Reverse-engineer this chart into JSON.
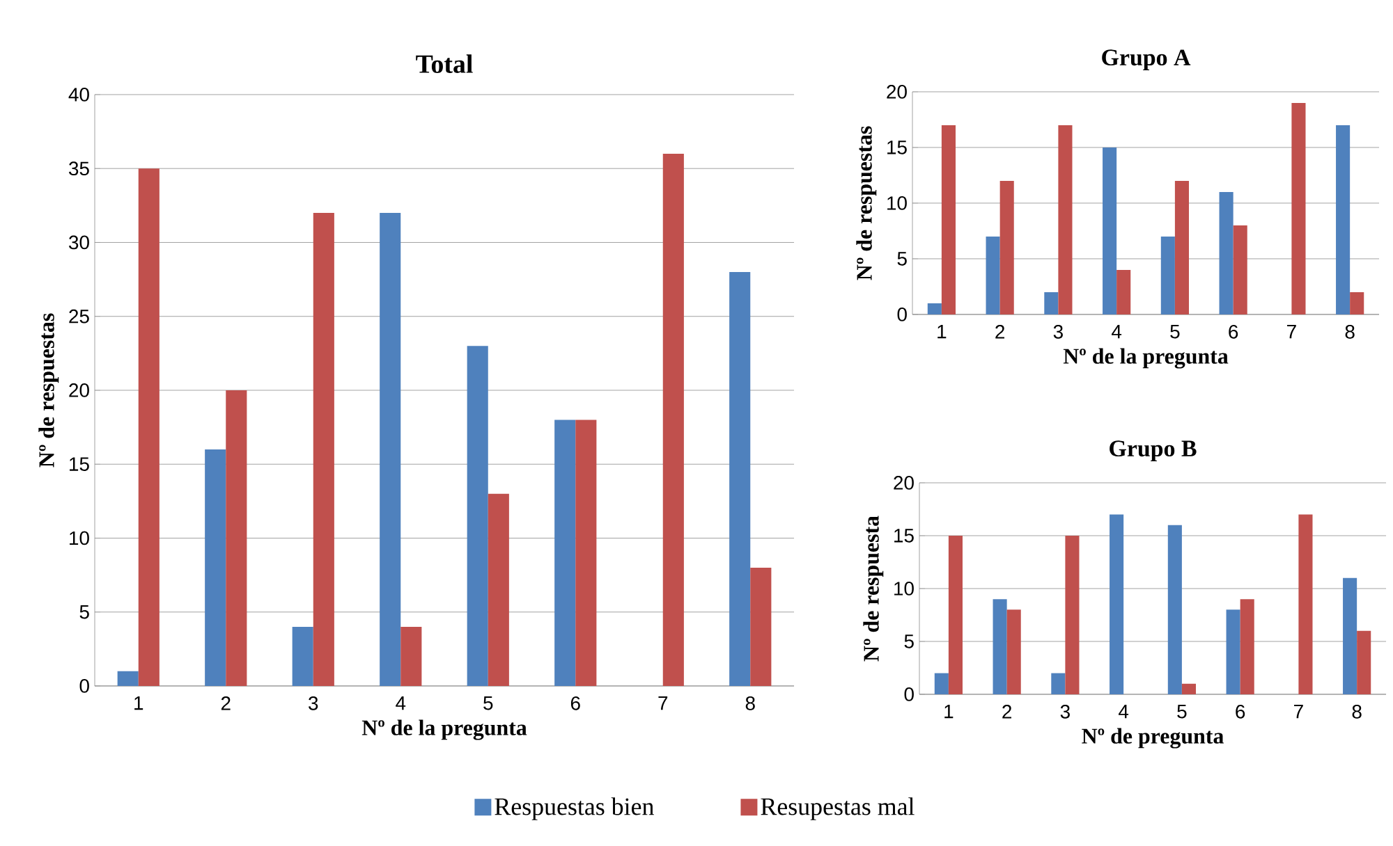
{
  "chart_data": [
    {
      "type": "bar",
      "title": "Total",
      "xlabel": "Nº de la pregunta",
      "ylabel": "Nº de respuestas",
      "categories": [
        "1",
        "2",
        "3",
        "4",
        "5",
        "6",
        "7",
        "8"
      ],
      "series": [
        {
          "name": "Respuestas bien",
          "color": "#4f81bd",
          "values": [
            1,
            16,
            4,
            32,
            23,
            18,
            0,
            28
          ]
        },
        {
          "name": "Resupestas mal",
          "color": "#c0504d",
          "values": [
            35,
            20,
            32,
            4,
            13,
            18,
            36,
            8
          ]
        }
      ],
      "ylim": [
        0,
        40
      ],
      "yticks": [
        0,
        5,
        10,
        15,
        20,
        25,
        30,
        35,
        40
      ],
      "grid": "y",
      "legend": "bottom"
    },
    {
      "type": "bar",
      "title": "Grupo A",
      "xlabel": "Nº de la pregunta",
      "ylabel": "Nº de respuestas",
      "categories": [
        "1",
        "2",
        "3",
        "4",
        "5",
        "6",
        "7",
        "8"
      ],
      "series": [
        {
          "color": "#4f81bd",
          "values": [
            1,
            7,
            2,
            15,
            7,
            11,
            0,
            17
          ]
        },
        {
          "color": "#c0504d",
          "values": [
            17,
            12,
            17,
            4,
            12,
            8,
            19,
            2
          ]
        }
      ],
      "ylim": [
        0,
        20
      ],
      "yticks": [
        0,
        5,
        10,
        15,
        20
      ],
      "grid": "y"
    },
    {
      "type": "bar",
      "title": "Grupo B",
      "xlabel": "Nº de pregunta",
      "ylabel": "Nº de respuesta",
      "categories": [
        "1",
        "2",
        "3",
        "4",
        "5",
        "6",
        "7",
        "8"
      ],
      "series": [
        {
          "color": "#4f81bd",
          "values": [
            2,
            9,
            2,
            17,
            16,
            8,
            0,
            11
          ]
        },
        {
          "color": "#c0504d",
          "values": [
            15,
            8,
            15,
            0,
            1,
            9,
            17,
            6
          ]
        }
      ],
      "ylim": [
        0,
        20
      ],
      "yticks": [
        0,
        5,
        10,
        15,
        20
      ],
      "grid": "y"
    }
  ]
}
